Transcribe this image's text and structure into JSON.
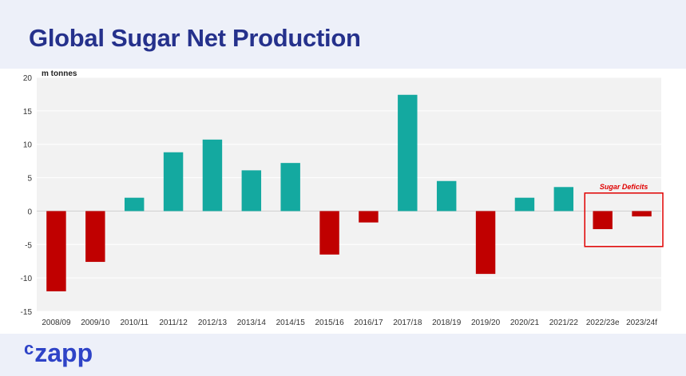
{
  "title": "Global Sugar Net Production",
  "logo": {
    "c": "c",
    "rest": "zapp"
  },
  "colors": {
    "surplus": "#14a9a0",
    "deficit": "#c00000",
    "plot_bg": "#f2f2f2",
    "title": "#25318c",
    "annotation": "#e00000"
  },
  "chart_data": {
    "type": "bar",
    "unit_label": "m tonnes",
    "categories": [
      "2008/09",
      "2009/10",
      "2010/11",
      "2011/12",
      "2012/13",
      "2013/14",
      "2014/15",
      "2015/16",
      "2016/17",
      "2017/18",
      "2018/19",
      "2019/20",
      "2020/21",
      "2021/22",
      "2022/23e",
      "2023/24f"
    ],
    "values": [
      -12.0,
      -7.6,
      2.0,
      8.8,
      10.7,
      6.1,
      7.2,
      -6.5,
      -1.7,
      17.4,
      4.5,
      -9.4,
      2.0,
      3.6,
      -2.7,
      -0.8
    ],
    "ylim": [
      -15,
      20
    ],
    "yticks": [
      -15,
      -10,
      -5,
      0,
      5,
      10,
      15,
      20
    ],
    "grid": true,
    "annotation": {
      "text": "Sugar Deficits",
      "categories": [
        "2022/23e",
        "2023/24f"
      ]
    }
  }
}
